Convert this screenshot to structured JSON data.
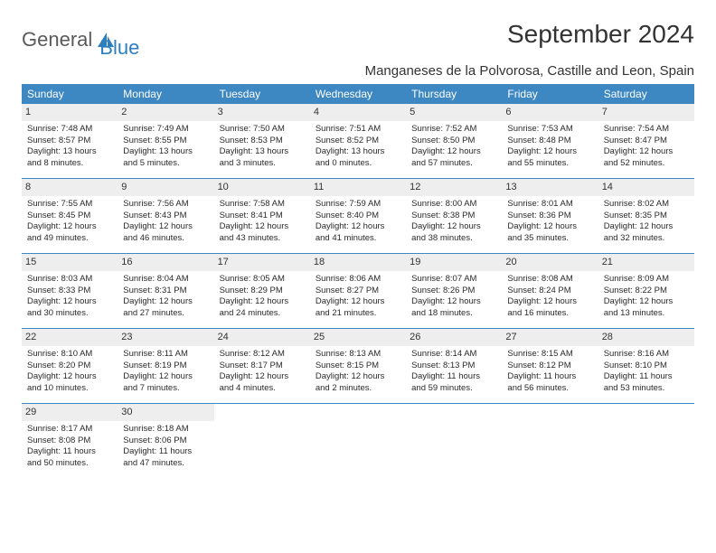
{
  "logo": {
    "text1": "General",
    "text2": "Blue"
  },
  "title": "September 2024",
  "location": "Manganeses de la Polvorosa, Castille and Leon, Spain",
  "colors": {
    "header_bg": "#3d87c2",
    "header_text": "#ffffff",
    "daynum_bg": "#eeeeee",
    "week_border": "#3d87c2",
    "text": "#2a2a2a",
    "logo_gray": "#5a5a5a",
    "logo_blue": "#2d7fbe"
  },
  "day_headers": [
    "Sunday",
    "Monday",
    "Tuesday",
    "Wednesday",
    "Thursday",
    "Friday",
    "Saturday"
  ],
  "weeks": [
    [
      {
        "n": "1",
        "sr": "Sunrise: 7:48 AM",
        "ss": "Sunset: 8:57 PM",
        "d1": "Daylight: 13 hours",
        "d2": "and 8 minutes."
      },
      {
        "n": "2",
        "sr": "Sunrise: 7:49 AM",
        "ss": "Sunset: 8:55 PM",
        "d1": "Daylight: 13 hours",
        "d2": "and 5 minutes."
      },
      {
        "n": "3",
        "sr": "Sunrise: 7:50 AM",
        "ss": "Sunset: 8:53 PM",
        "d1": "Daylight: 13 hours",
        "d2": "and 3 minutes."
      },
      {
        "n": "4",
        "sr": "Sunrise: 7:51 AM",
        "ss": "Sunset: 8:52 PM",
        "d1": "Daylight: 13 hours",
        "d2": "and 0 minutes."
      },
      {
        "n": "5",
        "sr": "Sunrise: 7:52 AM",
        "ss": "Sunset: 8:50 PM",
        "d1": "Daylight: 12 hours",
        "d2": "and 57 minutes."
      },
      {
        "n": "6",
        "sr": "Sunrise: 7:53 AM",
        "ss": "Sunset: 8:48 PM",
        "d1": "Daylight: 12 hours",
        "d2": "and 55 minutes."
      },
      {
        "n": "7",
        "sr": "Sunrise: 7:54 AM",
        "ss": "Sunset: 8:47 PM",
        "d1": "Daylight: 12 hours",
        "d2": "and 52 minutes."
      }
    ],
    [
      {
        "n": "8",
        "sr": "Sunrise: 7:55 AM",
        "ss": "Sunset: 8:45 PM",
        "d1": "Daylight: 12 hours",
        "d2": "and 49 minutes."
      },
      {
        "n": "9",
        "sr": "Sunrise: 7:56 AM",
        "ss": "Sunset: 8:43 PM",
        "d1": "Daylight: 12 hours",
        "d2": "and 46 minutes."
      },
      {
        "n": "10",
        "sr": "Sunrise: 7:58 AM",
        "ss": "Sunset: 8:41 PM",
        "d1": "Daylight: 12 hours",
        "d2": "and 43 minutes."
      },
      {
        "n": "11",
        "sr": "Sunrise: 7:59 AM",
        "ss": "Sunset: 8:40 PM",
        "d1": "Daylight: 12 hours",
        "d2": "and 41 minutes."
      },
      {
        "n": "12",
        "sr": "Sunrise: 8:00 AM",
        "ss": "Sunset: 8:38 PM",
        "d1": "Daylight: 12 hours",
        "d2": "and 38 minutes."
      },
      {
        "n": "13",
        "sr": "Sunrise: 8:01 AM",
        "ss": "Sunset: 8:36 PM",
        "d1": "Daylight: 12 hours",
        "d2": "and 35 minutes."
      },
      {
        "n": "14",
        "sr": "Sunrise: 8:02 AM",
        "ss": "Sunset: 8:35 PM",
        "d1": "Daylight: 12 hours",
        "d2": "and 32 minutes."
      }
    ],
    [
      {
        "n": "15",
        "sr": "Sunrise: 8:03 AM",
        "ss": "Sunset: 8:33 PM",
        "d1": "Daylight: 12 hours",
        "d2": "and 30 minutes."
      },
      {
        "n": "16",
        "sr": "Sunrise: 8:04 AM",
        "ss": "Sunset: 8:31 PM",
        "d1": "Daylight: 12 hours",
        "d2": "and 27 minutes."
      },
      {
        "n": "17",
        "sr": "Sunrise: 8:05 AM",
        "ss": "Sunset: 8:29 PM",
        "d1": "Daylight: 12 hours",
        "d2": "and 24 minutes."
      },
      {
        "n": "18",
        "sr": "Sunrise: 8:06 AM",
        "ss": "Sunset: 8:27 PM",
        "d1": "Daylight: 12 hours",
        "d2": "and 21 minutes."
      },
      {
        "n": "19",
        "sr": "Sunrise: 8:07 AM",
        "ss": "Sunset: 8:26 PM",
        "d1": "Daylight: 12 hours",
        "d2": "and 18 minutes."
      },
      {
        "n": "20",
        "sr": "Sunrise: 8:08 AM",
        "ss": "Sunset: 8:24 PM",
        "d1": "Daylight: 12 hours",
        "d2": "and 16 minutes."
      },
      {
        "n": "21",
        "sr": "Sunrise: 8:09 AM",
        "ss": "Sunset: 8:22 PM",
        "d1": "Daylight: 12 hours",
        "d2": "and 13 minutes."
      }
    ],
    [
      {
        "n": "22",
        "sr": "Sunrise: 8:10 AM",
        "ss": "Sunset: 8:20 PM",
        "d1": "Daylight: 12 hours",
        "d2": "and 10 minutes."
      },
      {
        "n": "23",
        "sr": "Sunrise: 8:11 AM",
        "ss": "Sunset: 8:19 PM",
        "d1": "Daylight: 12 hours",
        "d2": "and 7 minutes."
      },
      {
        "n": "24",
        "sr": "Sunrise: 8:12 AM",
        "ss": "Sunset: 8:17 PM",
        "d1": "Daylight: 12 hours",
        "d2": "and 4 minutes."
      },
      {
        "n": "25",
        "sr": "Sunrise: 8:13 AM",
        "ss": "Sunset: 8:15 PM",
        "d1": "Daylight: 12 hours",
        "d2": "and 2 minutes."
      },
      {
        "n": "26",
        "sr": "Sunrise: 8:14 AM",
        "ss": "Sunset: 8:13 PM",
        "d1": "Daylight: 11 hours",
        "d2": "and 59 minutes."
      },
      {
        "n": "27",
        "sr": "Sunrise: 8:15 AM",
        "ss": "Sunset: 8:12 PM",
        "d1": "Daylight: 11 hours",
        "d2": "and 56 minutes."
      },
      {
        "n": "28",
        "sr": "Sunrise: 8:16 AM",
        "ss": "Sunset: 8:10 PM",
        "d1": "Daylight: 11 hours",
        "d2": "and 53 minutes."
      }
    ],
    [
      {
        "n": "29",
        "sr": "Sunrise: 8:17 AM",
        "ss": "Sunset: 8:08 PM",
        "d1": "Daylight: 11 hours",
        "d2": "and 50 minutes."
      },
      {
        "n": "30",
        "sr": "Sunrise: 8:18 AM",
        "ss": "Sunset: 8:06 PM",
        "d1": "Daylight: 11 hours",
        "d2": "and 47 minutes."
      },
      null,
      null,
      null,
      null,
      null
    ]
  ]
}
